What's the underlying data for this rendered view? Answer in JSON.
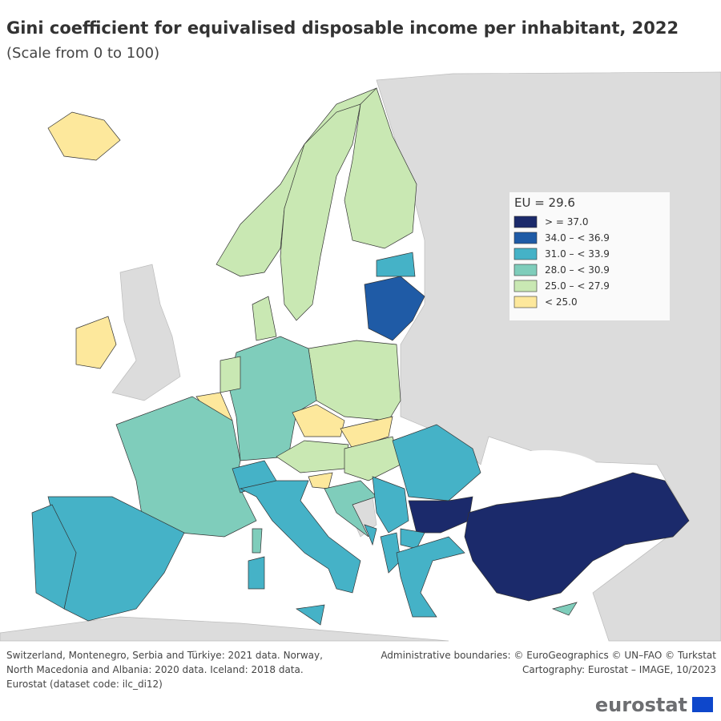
{
  "header": {
    "title": "Gini coefficient for equivalised disposable income per inhabitant, 2022",
    "subtitle": "(Scale from 0 to 100)"
  },
  "legend": {
    "title": "EU = 29.6",
    "classes": [
      {
        "label": "> = 37.0",
        "color": "#1b2a6b"
      },
      {
        "label": "34.0 – < 36.9",
        "color": "#1f5ba6"
      },
      {
        "label": "31.0 – < 33.9",
        "color": "#45b2c7"
      },
      {
        "label": "28.0 – < 30.9",
        "color": "#7fcdbb"
      },
      {
        "label": "25.0 – < 27.9",
        "color": "#c9e8b3"
      },
      {
        "label": "< 25.0",
        "color": "#fde89c"
      }
    ]
  },
  "footnotes": [
    "Switzerland, Montenegro, Serbia and Türkiye: 2021 data. Norway,",
    "North Macedonia and Albania: 2020 data. Iceland: 2018 data.",
    "Eurostat (dataset code: ilc_di12)"
  ],
  "credits": [
    "Administrative boundaries: © EuroGeographics © UN–FAO © Turkstat",
    "Cartography: Eurostat – IMAGE, 10/2023"
  ],
  "logo": "eurostat"
}
